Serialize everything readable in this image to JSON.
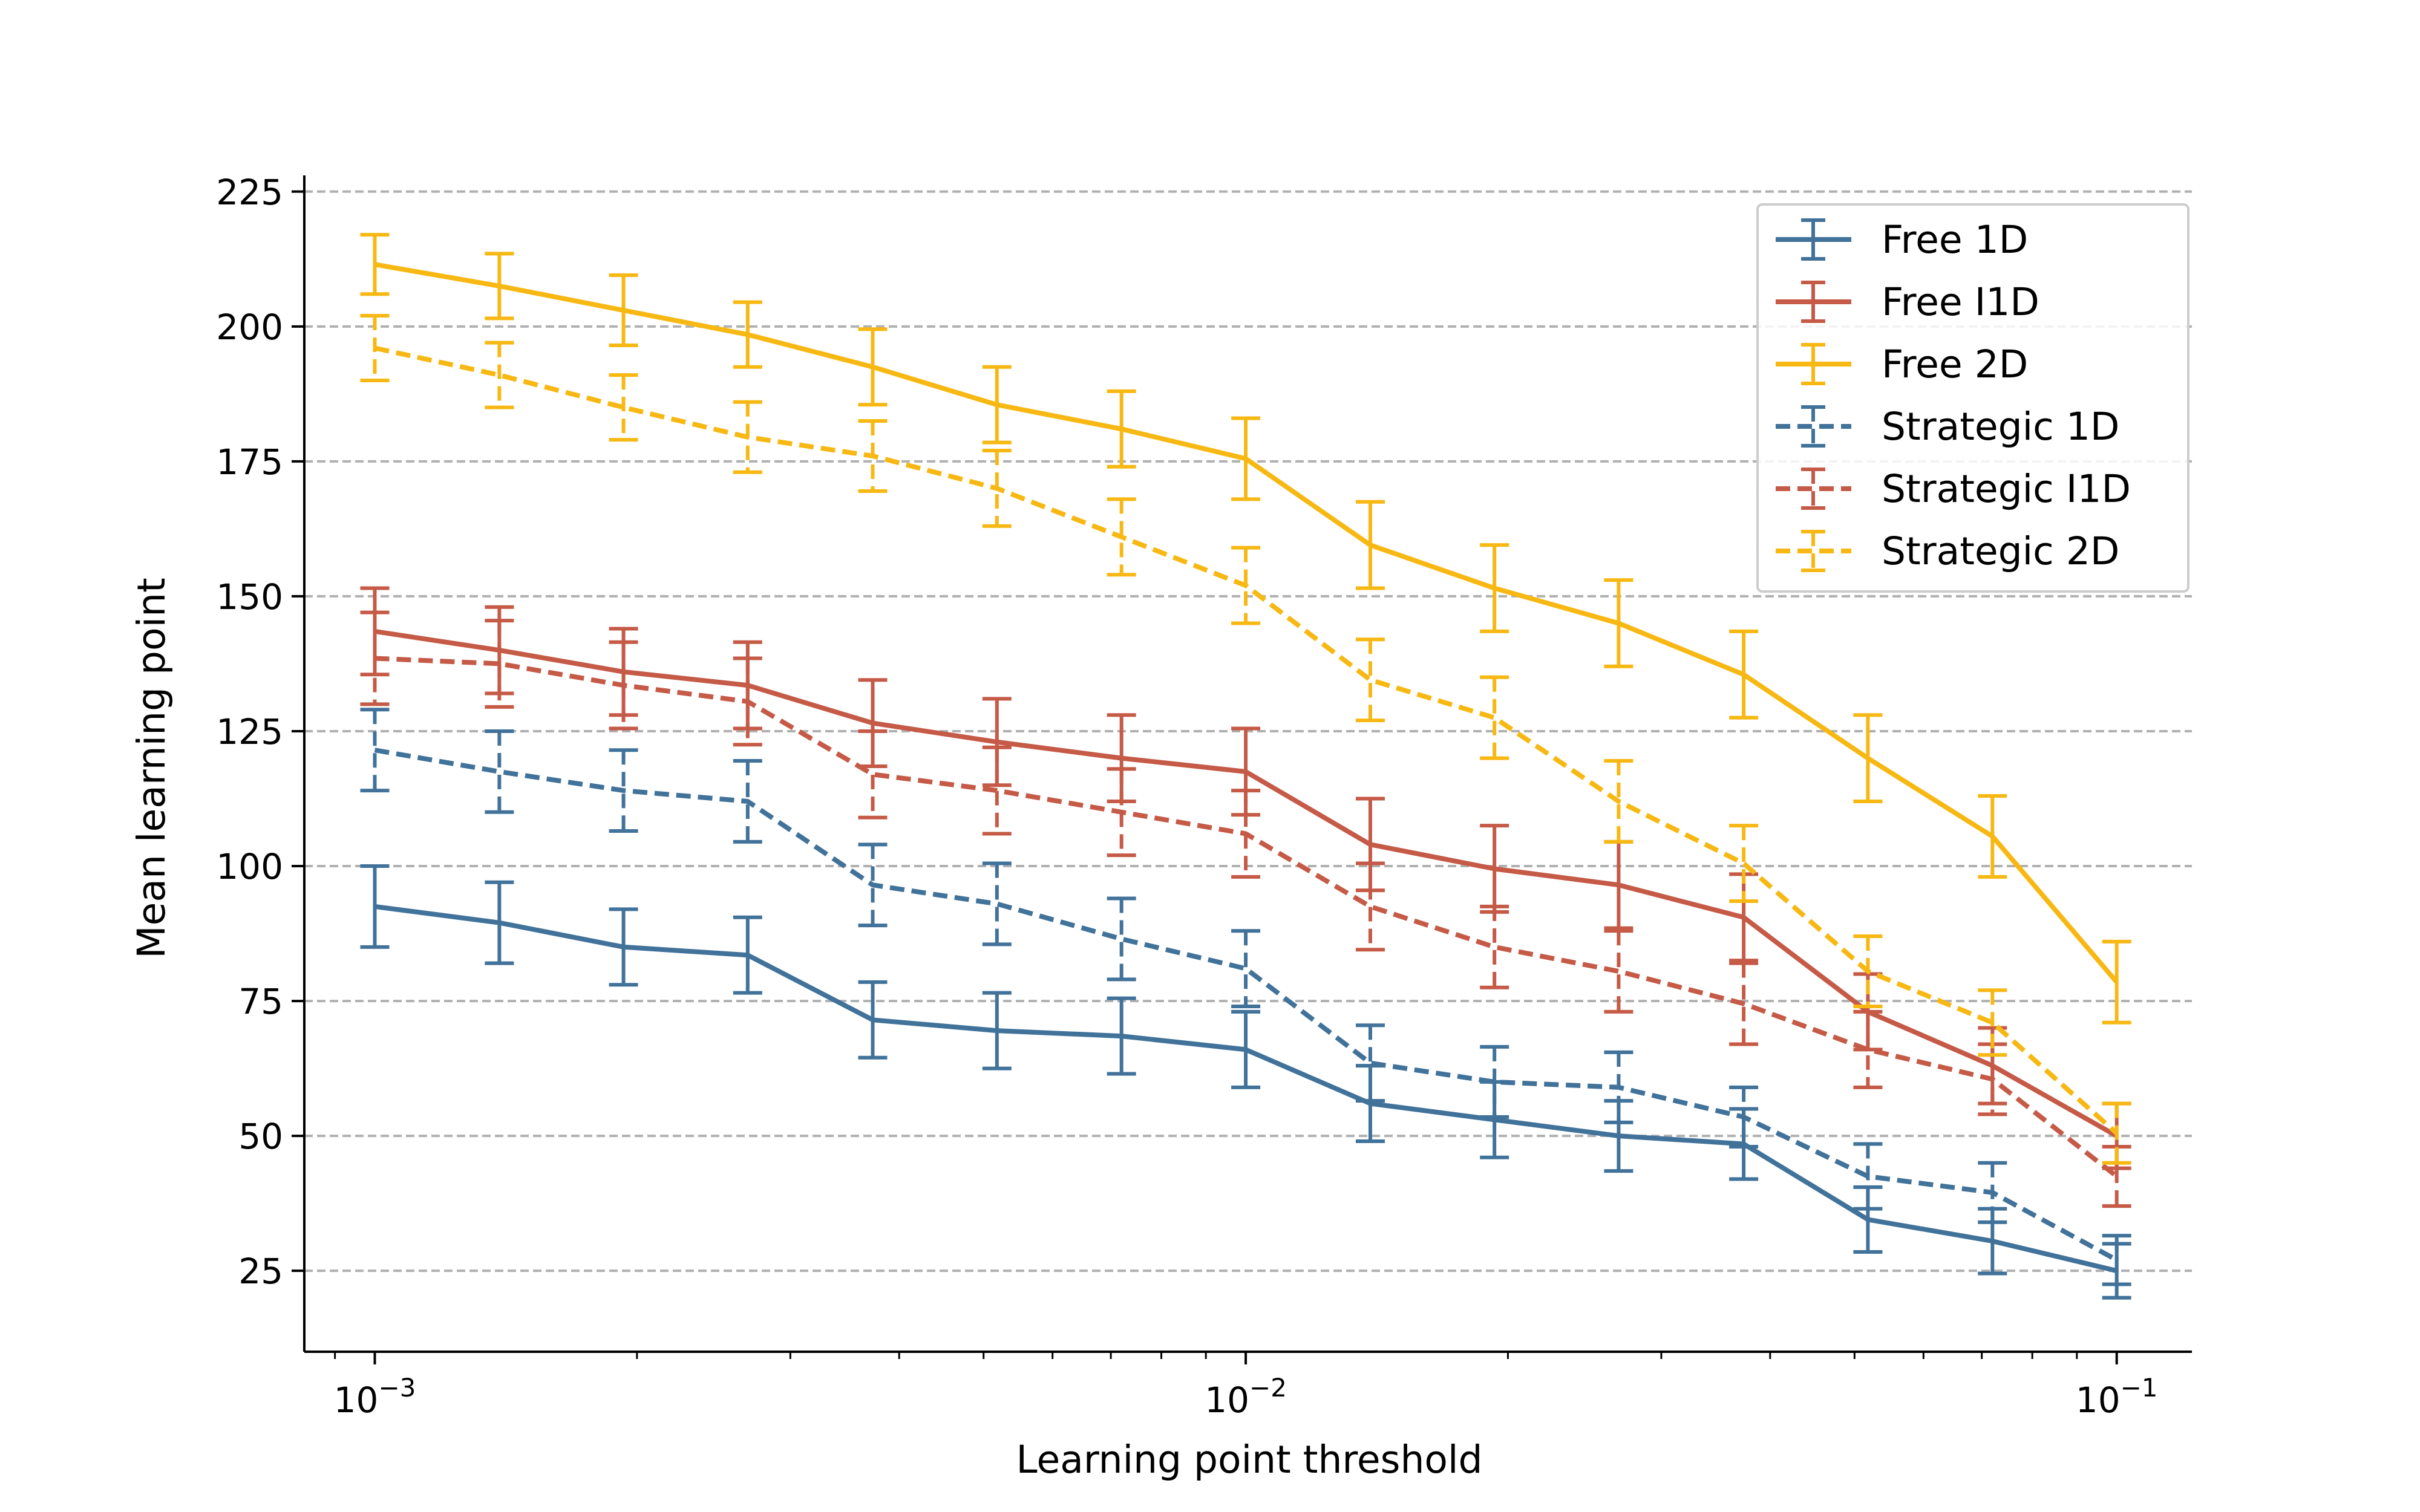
{
  "chart_data": {
    "type": "line",
    "xscale": "log",
    "xlim": [
      0.00083,
      0.122
    ],
    "ylim": [
      10,
      228
    ],
    "xlabel": "Learning point threshold",
    "ylabel": "Mean learning point",
    "x_ticks": [
      {
        "value": 0.001,
        "base": "10",
        "exp": "−3"
      },
      {
        "value": 0.01,
        "base": "10",
        "exp": "−2"
      },
      {
        "value": 0.1,
        "base": "10",
        "exp": "−1"
      }
    ],
    "y_ticks": [
      25,
      50,
      75,
      100,
      125,
      150,
      175,
      200,
      225
    ],
    "grid": "horizontal dashed",
    "legend_position": "top-right",
    "x": [
      0.001,
      0.00139,
      0.00193,
      0.00268,
      0.00373,
      0.00518,
      0.0072,
      0.01,
      0.0139,
      0.0193,
      0.0268,
      0.0373,
      0.0518,
      0.072,
      0.1
    ],
    "series": [
      {
        "name": "Free 1D",
        "color": "#41729a",
        "dash": "solid",
        "values": [
          92.5,
          89.5,
          85,
          83.5,
          71.5,
          69.5,
          68.5,
          66,
          56,
          53,
          50,
          48.5,
          34.5,
          30.5,
          25
        ],
        "err": [
          7.5,
          7.5,
          7,
          7,
          7,
          7,
          7,
          7,
          7,
          7,
          6.5,
          6.5,
          6,
          6,
          5
        ]
      },
      {
        "name": "Free I1D",
        "color": "#c55a47",
        "dash": "solid",
        "values": [
          143.5,
          140,
          136,
          133.5,
          126.5,
          123,
          120,
          117.5,
          104,
          99.5,
          96.5,
          90.5,
          73,
          63,
          50
        ],
        "err": [
          8,
          8,
          8,
          8,
          8,
          8,
          8,
          8,
          8.5,
          8,
          8,
          8,
          7,
          7,
          6
        ]
      },
      {
        "name": "Free 2D",
        "color": "#f7b813",
        "dash": "solid",
        "values": [
          211.5,
          207.5,
          203,
          198.5,
          192.5,
          185.5,
          181,
          175.5,
          159.5,
          151.5,
          145,
          135.5,
          120,
          105.5,
          78.5
        ],
        "err": [
          5.5,
          6,
          6.5,
          6,
          7,
          7,
          7,
          7.5,
          8,
          8,
          8,
          8,
          8,
          7.5,
          7.5
        ]
      },
      {
        "name": "Strategic 1D",
        "color": "#41729a",
        "dash": "dashed",
        "values": [
          121.5,
          117.5,
          114,
          112,
          96.5,
          93,
          86.5,
          81,
          63.5,
          60,
          59,
          53.5,
          42.5,
          39.5,
          27
        ],
        "err": [
          7.5,
          7.5,
          7.5,
          7.5,
          7.5,
          7.5,
          7.5,
          7,
          7,
          6.5,
          6.5,
          5.5,
          6,
          5.5,
          4.5
        ]
      },
      {
        "name": "Strategic I1D",
        "color": "#c55a47",
        "dash": "dashed",
        "values": [
          138.5,
          137.5,
          133.5,
          130.5,
          117,
          114,
          110,
          106,
          92.5,
          85,
          80.5,
          74.5,
          66,
          60.5,
          42.5
        ],
        "err": [
          8.5,
          8,
          8,
          8,
          8,
          8,
          8,
          8,
          8,
          7.5,
          7.5,
          7.5,
          7,
          6.5,
          5.5
        ]
      },
      {
        "name": "Strategic 2D",
        "color": "#f7b813",
        "dash": "dashed",
        "values": [
          196,
          191,
          185,
          179.5,
          176,
          170,
          161,
          152,
          134.5,
          127.5,
          112,
          100.5,
          80.5,
          71,
          50.5
        ],
        "err": [
          6,
          6,
          6,
          6.5,
          6.5,
          7,
          7,
          7,
          7.5,
          7.5,
          7.5,
          7,
          6.5,
          6,
          5.5
        ]
      }
    ]
  }
}
